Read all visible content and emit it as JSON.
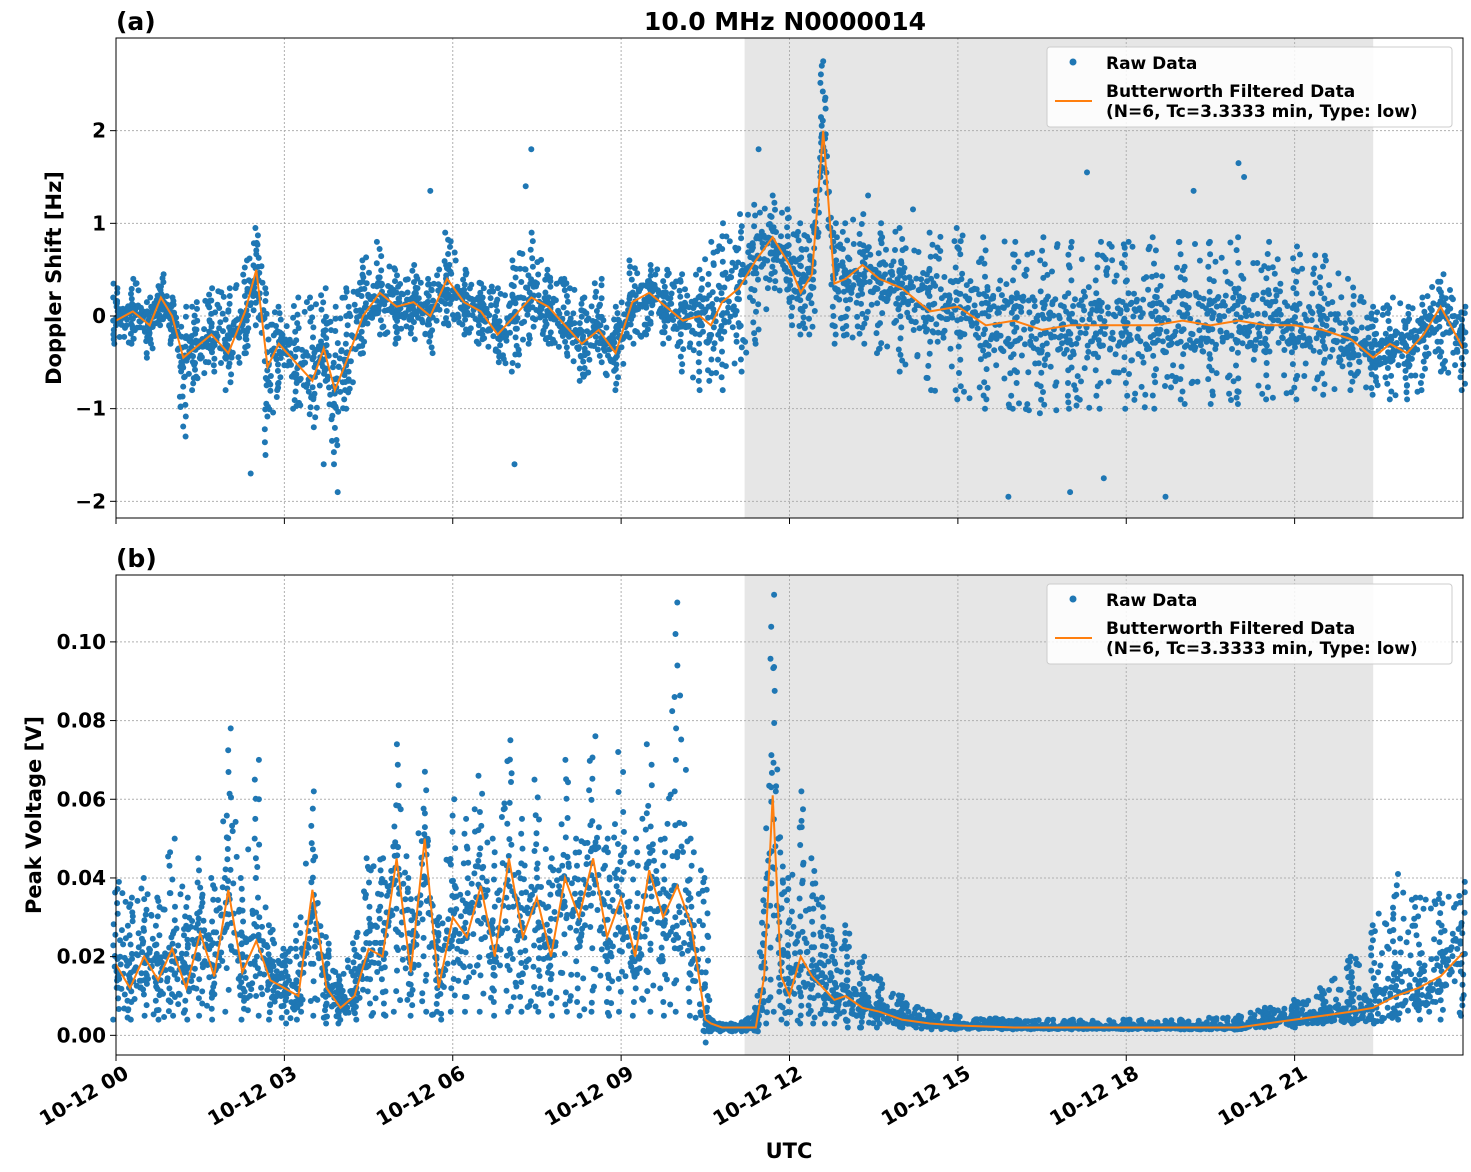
{
  "chart_data": [
    {
      "panel": "(a)",
      "type": "scatter",
      "title": "10.0 MHz N0000014",
      "xlabel": "",
      "ylabel": "Doppler Shift [Hz]",
      "xlim_hours": [
        0,
        24
      ],
      "ylim": [
        -2.18,
        3.0
      ],
      "yticks": [
        -2,
        -1,
        0,
        1,
        2
      ],
      "ytick_labels": [
        "−2",
        "−1",
        "0",
        "1",
        "2"
      ],
      "shaded_interval_hours": [
        11.2,
        22.4
      ],
      "grid": true,
      "legend": {
        "placement": "top-right",
        "entries": [
          "Raw Data",
          "Butterworth Filtered Data",
          "(N=6, Tc=3.3333 min, Type: low)"
        ]
      },
      "series": [
        {
          "name": "Butterworth Filtered Data",
          "style": "line",
          "color": "#ff7f0e",
          "x_hours": [
            0,
            0.3,
            0.6,
            0.8,
            1.0,
            1.2,
            1.4,
            1.7,
            2.0,
            2.3,
            2.5,
            2.7,
            2.9,
            3.2,
            3.5,
            3.7,
            3.9,
            4.1,
            4.4,
            4.7,
            5.0,
            5.3,
            5.6,
            5.9,
            6.2,
            6.5,
            6.8,
            7.1,
            7.4,
            7.7,
            8.0,
            8.3,
            8.6,
            8.9,
            9.2,
            9.5,
            9.8,
            10.1,
            10.4,
            10.6,
            10.8,
            11.1,
            11.4,
            11.7,
            12.0,
            12.2,
            12.4,
            12.6,
            12.8,
            13.0,
            13.3,
            13.6,
            14.0,
            14.5,
            15.0,
            15.5,
            16.0,
            16.5,
            17.0,
            17.5,
            18.0,
            18.5,
            19.0,
            19.5,
            20.0,
            20.5,
            21.0,
            21.5,
            22.0,
            22.4,
            22.7,
            23.0,
            23.3,
            23.6,
            24.0
          ],
          "values": [
            -0.05,
            0.05,
            -0.1,
            0.2,
            0.0,
            -0.45,
            -0.35,
            -0.2,
            -0.4,
            0.05,
            0.5,
            -0.55,
            -0.3,
            -0.5,
            -0.7,
            -0.35,
            -0.8,
            -0.5,
            0.0,
            0.25,
            0.1,
            0.15,
            0.0,
            0.4,
            0.15,
            0.05,
            -0.2,
            0.0,
            0.2,
            0.1,
            -0.1,
            -0.3,
            -0.15,
            -0.4,
            0.15,
            0.25,
            0.1,
            -0.05,
            0.0,
            -0.1,
            0.15,
            0.3,
            0.6,
            0.85,
            0.55,
            0.25,
            0.45,
            2.0,
            0.35,
            0.4,
            0.55,
            0.4,
            0.3,
            0.05,
            0.1,
            -0.1,
            -0.05,
            -0.15,
            -0.1,
            -0.1,
            -0.1,
            -0.1,
            -0.05,
            -0.1,
            -0.05,
            -0.1,
            -0.1,
            -0.15,
            -0.25,
            -0.45,
            -0.3,
            -0.4,
            -0.2,
            0.1,
            -0.35
          ]
        },
        {
          "name": "Raw Data",
          "style": "markers",
          "color": "#1f77b4",
          "description_envelope_upper": [
            0.35,
            0.4,
            0.2,
            0.45,
            0.2,
            0.1,
            0.15,
            0.3,
            0.3,
            0.6,
            0.95,
            0.3,
            0.1,
            0.2,
            0.2,
            0.3,
            0.1,
            0.3,
            0.6,
            0.8,
            0.5,
            0.55,
            0.4,
            0.9,
            0.5,
            0.35,
            0.3,
            0.6,
            0.9,
            0.5,
            0.4,
            0.2,
            0.4,
            0.1,
            0.6,
            0.55,
            0.5,
            0.45,
            0.5,
            0.8,
            1.0,
            1.1,
            1.2,
            1.3,
            1.15,
            1.0,
            0.9,
            2.7,
            1.0,
            1.0,
            1.1,
            1.0,
            0.95,
            0.9,
            0.95,
            0.85,
            0.8,
            0.85,
            0.8,
            0.8,
            0.8,
            0.85,
            0.8,
            0.8,
            0.85,
            0.8,
            0.75,
            0.65,
            0.4,
            0.1,
            0.2,
            0.1,
            0.2,
            0.45,
            0.1
          ],
          "description_envelope_lower": [
            -0.3,
            -0.3,
            -0.45,
            -0.1,
            -0.3,
            -1.3,
            -0.8,
            -0.6,
            -0.8,
            -0.4,
            -0.1,
            -1.5,
            -0.8,
            -1.0,
            -1.2,
            -0.7,
            -1.6,
            -1.0,
            -0.4,
            -0.2,
            -0.3,
            -0.25,
            -0.4,
            -0.1,
            -0.2,
            -0.3,
            -0.5,
            -0.6,
            -0.3,
            -0.3,
            -0.4,
            -0.7,
            -0.5,
            -0.8,
            -0.3,
            -0.2,
            -0.3,
            -0.6,
            -0.8,
            -0.7,
            -0.8,
            -0.6,
            -0.3,
            0.3,
            -0.1,
            -0.2,
            -0.2,
            1.5,
            -0.3,
            -0.2,
            -0.3,
            -0.4,
            -0.6,
            -0.8,
            -0.9,
            -1.0,
            -1.0,
            -1.05,
            -1.0,
            -1.0,
            -1.0,
            -1.0,
            -0.95,
            -0.95,
            -0.95,
            -0.9,
            -0.9,
            -0.85,
            -0.8,
            -0.85,
            -0.9,
            -0.9,
            -0.8,
            -0.6,
            -0.8
          ],
          "outliers": [
            [
              2.4,
              -1.7
            ],
            [
              3.7,
              -1.6
            ],
            [
              3.95,
              -1.9
            ],
            [
              7.1,
              -1.6
            ],
            [
              7.4,
              1.8
            ],
            [
              11.45,
              1.8
            ],
            [
              12.6,
              2.75
            ],
            [
              15.9,
              -1.95
            ],
            [
              17.0,
              -1.9
            ],
            [
              17.6,
              -1.75
            ],
            [
              18.7,
              -1.95
            ],
            [
              17.3,
              1.55
            ],
            [
              20.0,
              1.65
            ],
            [
              20.1,
              1.5
            ],
            [
              14.2,
              1.15
            ],
            [
              13.4,
              1.3
            ],
            [
              19.2,
              1.35
            ],
            [
              5.6,
              1.35
            ],
            [
              7.3,
              1.4
            ]
          ]
        }
      ]
    },
    {
      "panel": "(b)",
      "type": "scatter",
      "title": "",
      "xlabel": "UTC",
      "ylabel": "Peak Voltage [V]",
      "xlim_hours": [
        0,
        24
      ],
      "ylim": [
        -0.005,
        0.117
      ],
      "yticks": [
        0.0,
        0.02,
        0.04,
        0.06,
        0.08,
        0.1
      ],
      "ytick_labels": [
        "0.00",
        "0.02",
        "0.04",
        "0.06",
        "0.08",
        "0.10"
      ],
      "xtick_hours": [
        0,
        3,
        6,
        9,
        12,
        15,
        18,
        21
      ],
      "xtick_labels": [
        "10-12 00",
        "10-12 03",
        "10-12 06",
        "10-12 09",
        "10-12 12",
        "10-12 15",
        "10-12 18",
        "10-12 21"
      ],
      "shaded_interval_hours": [
        11.2,
        22.4
      ],
      "grid": true,
      "legend": {
        "placement": "top-right",
        "entries": [
          "Raw Data",
          "Butterworth Filtered Data",
          "(N=6, Tc=3.3333 min, Type: low)"
        ]
      },
      "series": [
        {
          "name": "Butterworth Filtered Data",
          "style": "line",
          "color": "#ff7f0e",
          "x_hours": [
            0,
            0.25,
            0.5,
            0.75,
            1.0,
            1.25,
            1.5,
            1.75,
            2.0,
            2.25,
            2.5,
            2.75,
            3.0,
            3.25,
            3.5,
            3.75,
            4.0,
            4.25,
            4.5,
            4.75,
            5.0,
            5.25,
            5.5,
            5.75,
            6.0,
            6.25,
            6.5,
            6.75,
            7.0,
            7.25,
            7.5,
            7.75,
            8.0,
            8.25,
            8.5,
            8.75,
            9.0,
            9.25,
            9.5,
            9.75,
            10.0,
            10.25,
            10.5,
            10.6,
            10.8,
            11.0,
            11.2,
            11.4,
            11.55,
            11.7,
            11.85,
            12.0,
            12.2,
            12.4,
            12.6,
            12.8,
            13.0,
            13.3,
            13.6,
            14.0,
            14.5,
            15.0,
            16.0,
            17.0,
            18.0,
            19.0,
            20.0,
            20.5,
            21.0,
            21.5,
            22.0,
            22.4,
            22.8,
            23.2,
            23.6,
            24.0
          ],
          "values": [
            0.018,
            0.012,
            0.02,
            0.014,
            0.022,
            0.012,
            0.026,
            0.015,
            0.037,
            0.016,
            0.024,
            0.014,
            0.012,
            0.01,
            0.037,
            0.012,
            0.007,
            0.01,
            0.022,
            0.02,
            0.045,
            0.016,
            0.05,
            0.012,
            0.03,
            0.025,
            0.038,
            0.02,
            0.045,
            0.025,
            0.035,
            0.02,
            0.04,
            0.03,
            0.045,
            0.025,
            0.035,
            0.02,
            0.042,
            0.03,
            0.038,
            0.028,
            0.004,
            0.003,
            0.002,
            0.002,
            0.002,
            0.002,
            0.015,
            0.061,
            0.015,
            0.01,
            0.02,
            0.015,
            0.012,
            0.009,
            0.01,
            0.007,
            0.006,
            0.004,
            0.003,
            0.0025,
            0.002,
            0.002,
            0.002,
            0.002,
            0.002,
            0.003,
            0.004,
            0.005,
            0.006,
            0.007,
            0.01,
            0.012,
            0.015,
            0.021
          ]
        },
        {
          "name": "Raw Data",
          "style": "markers",
          "color": "#1f77b4",
          "description_envelope_upper": [
            0.039,
            0.035,
            0.04,
            0.035,
            0.05,
            0.035,
            0.045,
            0.04,
            0.078,
            0.04,
            0.07,
            0.028,
            0.022,
            0.03,
            0.062,
            0.025,
            0.015,
            0.025,
            0.045,
            0.045,
            0.074,
            0.04,
            0.067,
            0.03,
            0.06,
            0.055,
            0.066,
            0.05,
            0.075,
            0.055,
            0.065,
            0.045,
            0.07,
            0.05,
            0.076,
            0.05,
            0.072,
            0.05,
            0.074,
            0.05,
            0.11,
            0.05,
            0.04,
            0.004,
            0.003,
            0.003,
            0.004,
            0.007,
            0.04,
            0.112,
            0.05,
            0.04,
            0.062,
            0.045,
            0.035,
            0.025,
            0.028,
            0.02,
            0.015,
            0.01,
            0.006,
            0.005,
            0.004,
            0.004,
            0.004,
            0.004,
            0.005,
            0.007,
            0.009,
            0.012,
            0.02,
            0.028,
            0.041,
            0.035,
            0.036,
            0.039
          ],
          "description_envelope_lower": [
            0.004,
            0.004,
            0.005,
            0.004,
            0.005,
            0.004,
            0.005,
            0.004,
            0.006,
            0.004,
            0.005,
            0.004,
            0.003,
            0.004,
            0.005,
            0.003,
            0.003,
            0.004,
            0.005,
            0.005,
            0.006,
            0.005,
            0.006,
            0.004,
            0.006,
            0.006,
            0.006,
            0.005,
            0.006,
            0.006,
            0.006,
            0.005,
            0.006,
            0.005,
            0.006,
            0.005,
            0.006,
            0.005,
            0.006,
            0.005,
            0.006,
            0.005,
            0.001,
            0.001,
            0.001,
            0.001,
            0.001,
            0.001,
            0.003,
            0.006,
            0.004,
            0.003,
            0.003,
            0.003,
            0.003,
            0.003,
            0.002,
            0.002,
            0.002,
            0.002,
            0.0015,
            0.0015,
            0.0015,
            0.0015,
            0.0015,
            0.0015,
            0.0015,
            0.002,
            0.002,
            0.003,
            0.003,
            0.003,
            0.004,
            0.004,
            0.004,
            0.005
          ]
        }
      ]
    }
  ],
  "colors": {
    "raw": "#1f77b4",
    "filtered": "#ff7f0e",
    "shade": "#e6e6e6",
    "grid": "#b0b0b0"
  }
}
